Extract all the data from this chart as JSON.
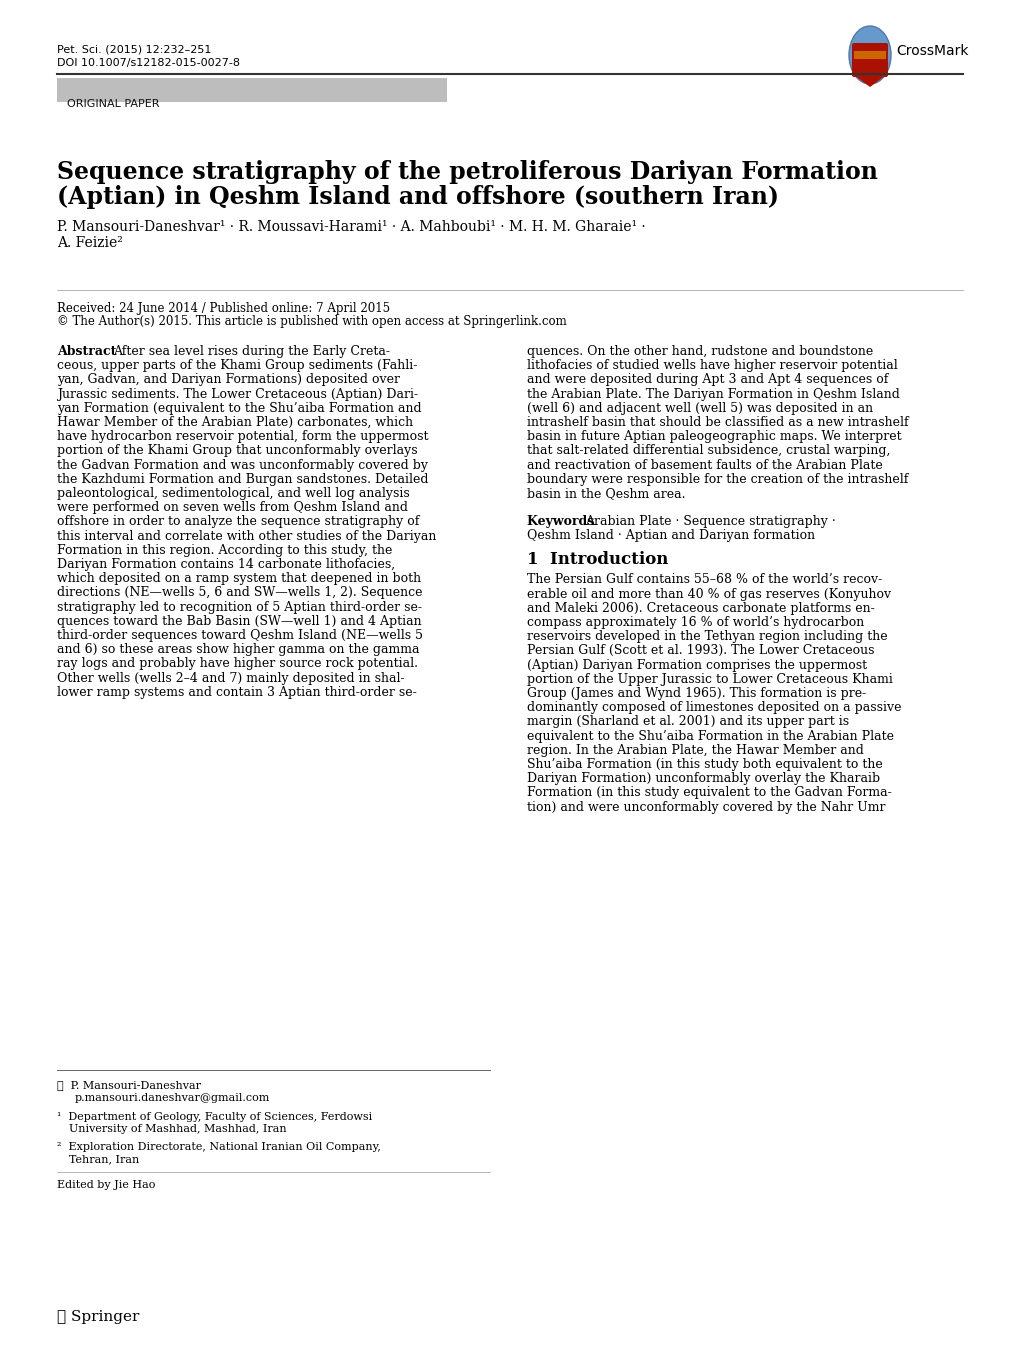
{
  "journal_line1": "Pet. Sci. (2015) 12:232–251",
  "journal_line2": "DOI 10.1007/s12182-015-0027-8",
  "section_label": "ORIGINAL PAPER",
  "title_line1": "Sequence stratigraphy of the petroliferous Dariyan Formation",
  "title_line2": "(Aptian) in Qeshm Island and offshore (southern Iran)",
  "authors_line1": "P. Mansouri-Daneshvar¹ · R. Moussavi-Harami¹ · A. Mahboubi¹ · M. H. M. Gharaie¹ ·",
  "authors_line2": "A. Feizie²",
  "received": "Received: 24 June 2014 / Published online: 7 April 2015",
  "copyright": "© The Author(s) 2015. This article is published with open access at Springerlink.com",
  "abstract_bold": "Abstract",
  "abstract_col1": [
    "After sea level rises during the Early Creta-",
    "ceous, upper parts of the Khami Group sediments (Fahli-",
    "yan, Gadvan, and Dariyan Formations) deposited over",
    "Jurassic sediments. The Lower Cretaceous (Aptian) Dari-",
    "yan Formation (equivalent to the Shu’aiba Formation and",
    "Hawar Member of the Arabian Plate) carbonates, which",
    "have hydrocarbon reservoir potential, form the uppermost",
    "portion of the Khami Group that unconformably overlays",
    "the Gadvan Formation and was unconformably covered by",
    "the Kazhdumi Formation and Burgan sandstones. Detailed",
    "paleontological, sedimentological, and well log analysis",
    "were performed on seven wells from Qeshm Island and",
    "offshore in order to analyze the sequence stratigraphy of",
    "this interval and correlate with other studies of the Dariyan",
    "Formation in this region. According to this study, the",
    "Dariyan Formation contains 14 carbonate lithofacies,",
    "which deposited on a ramp system that deepened in both",
    "directions (NE—wells 5, 6 and SW—wells 1, 2). Sequence",
    "stratigraphy led to recognition of 5 Aptian third-order se-",
    "quences toward the Bab Basin (SW—well 1) and 4 Aptian",
    "third-order sequences toward Qeshm Island (NE—wells 5",
    "and 6) so these areas show higher gamma on the gamma",
    "ray logs and probably have higher source rock potential.",
    "Other wells (wells 2–4 and 7) mainly deposited in shal-",
    "lower ramp systems and contain 3 Aptian third-order se-"
  ],
  "abstract_col2": [
    "quences. On the other hand, rudstone and boundstone",
    "lithofacies of studied wells have higher reservoir potential",
    "and were deposited during Apt 3 and Apt 4 sequences of",
    "the Arabian Plate. The Dariyan Formation in Qeshm Island",
    "(well 6) and adjacent well (well 5) was deposited in an",
    "intrashelf basin that should be classified as a new intrashelf",
    "basin in future Aptian paleogeographic maps. We interpret",
    "that salt-related differential subsidence, crustal warping,",
    "and reactivation of basement faults of the Arabian Plate",
    "boundary were responsible for the creation of the intrashelf",
    "basin in the Qeshm area."
  ],
  "keywords_bold": "Keywords",
  "keywords_line1": "Arabian Plate · Sequence stratigraphy ·",
  "keywords_line2": "Qeshm Island · Aptian and Dariyan formation",
  "intro_title": "1  Introduction",
  "intro_col2": [
    "The Persian Gulf contains 55–68 % of the world’s recov-",
    "erable oil and more than 40 % of gas reserves (Konyuhov",
    "and Maleki 2006). Cretaceous carbonate platforms en-",
    "compass approximately 16 % of world’s hydrocarbon",
    "reservoirs developed in the Tethyan region including the",
    "Persian Gulf (Scott et al. 1993). The Lower Cretaceous",
    "(Aptian) Dariyan Formation comprises the uppermost",
    "portion of the Upper Jurassic to Lower Cretaceous Khami",
    "Group (James and Wynd 1965). This formation is pre-",
    "dominantly composed of limestones deposited on a passive",
    "margin (Sharland et al. 2001) and its upper part is",
    "equivalent to the Shu’aiba Formation in the Arabian Plate",
    "region. In the Arabian Plate, the Hawar Member and",
    "Shu’aiba Formation (in this study both equivalent to the",
    "Dariyan Formation) unconformably overlay the Kharaib",
    "Formation (in this study equivalent to the Gadvan Forma-",
    "tion) and were unconformably covered by the Nahr Umr"
  ],
  "fn_email_label": "✉  P. Mansouri-Daneshvar",
  "fn_email": "p.mansouri.daneshvar@gmail.com",
  "fn1_line1": "¹  Department of Geology, Faculty of Sciences, Ferdowsi",
  "fn1_line2": "    University of Mashhad, Mashhad, Iran",
  "fn2_line1": "²  Exploration Directorate, National Iranian Oil Company,",
  "fn2_line2": "    Tehran, Iran",
  "fn_edited": "Edited by Jie Hao",
  "springer": "Ⓢ Springer",
  "ref_2006": "2006",
  "ref_1993": "1993",
  "ref_1965": "1965",
  "ref_2001": "2001",
  "bg_color": "#ffffff",
  "text_color": "#000000",
  "link_color": "#1a0dab",
  "gray_bg": "#bdbdbd"
}
